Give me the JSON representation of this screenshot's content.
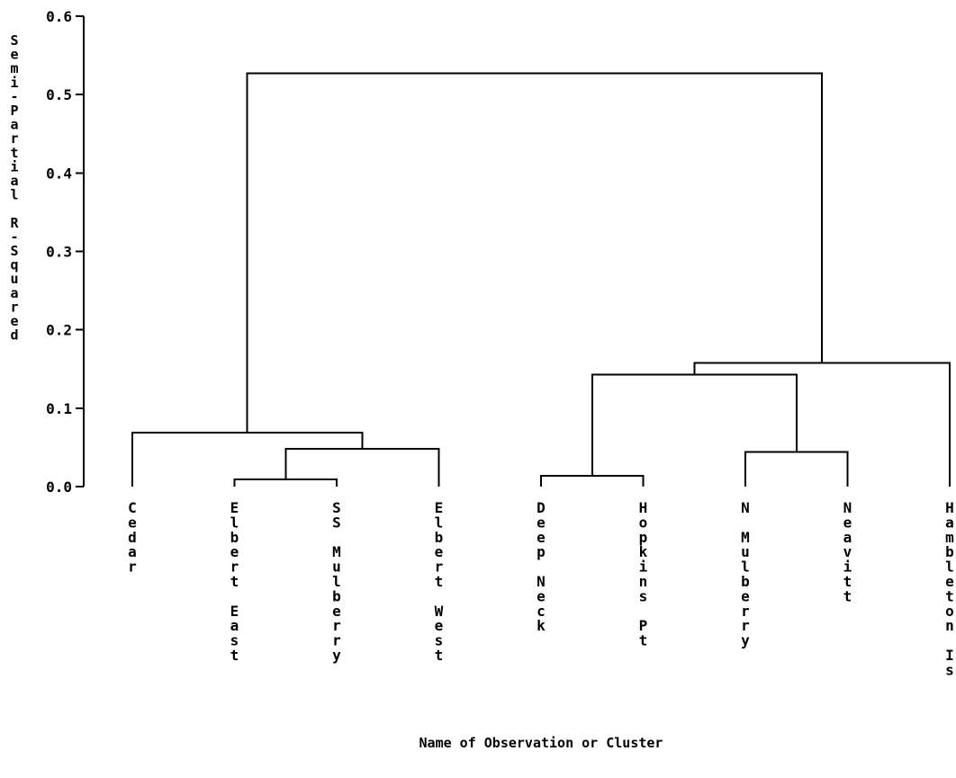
{
  "chart_data": {
    "type": "dendrogram",
    "ylabel": "Semi-Partial R-Squared",
    "xlabel": "Name of Observation or Cluster",
    "ylim": [
      0.0,
      0.6
    ],
    "yticks": [
      "0.0",
      "0.1",
      "0.2",
      "0.3",
      "0.4",
      "0.5",
      "0.6"
    ],
    "leaves": [
      "Cedar",
      "Elbert East",
      "SS Mulberry",
      "Elbert West",
      "Deep Neck",
      "Hopkins Pt",
      "N Mulberry",
      "Neavitt",
      "Hambleton Is"
    ],
    "merges": [
      {
        "left": "Elbert East",
        "right": "SS Mulberry",
        "height": 0.009
      },
      {
        "left": "Deep Neck",
        "right": "Hopkins Pt",
        "height": 0.014
      },
      {
        "left": "N Mulberry",
        "right": "Neavitt",
        "height": 0.044
      },
      {
        "left": "Elbert East, SS Mulberry",
        "right": "Elbert West",
        "height": 0.048
      },
      {
        "left": "Cedar",
        "right": "Elbert East, SS Mulberry, Elbert West",
        "height": 0.069
      },
      {
        "left": "Deep Neck, Hopkins Pt",
        "right": "N Mulberry, Neavitt",
        "height": 0.143
      },
      {
        "left": "Deep Neck, Hopkins Pt, N Mulberry, Neavitt",
        "right": "Hambleton Is",
        "height": 0.158
      },
      {
        "left": "Cedar, Elbert East, SS Mulberry, Elbert West",
        "right": "Deep Neck, Hopkins Pt, N Mulberry, Neavitt, Hambleton Is",
        "height": 0.527
      }
    ],
    "grid": false,
    "legend": "none"
  }
}
